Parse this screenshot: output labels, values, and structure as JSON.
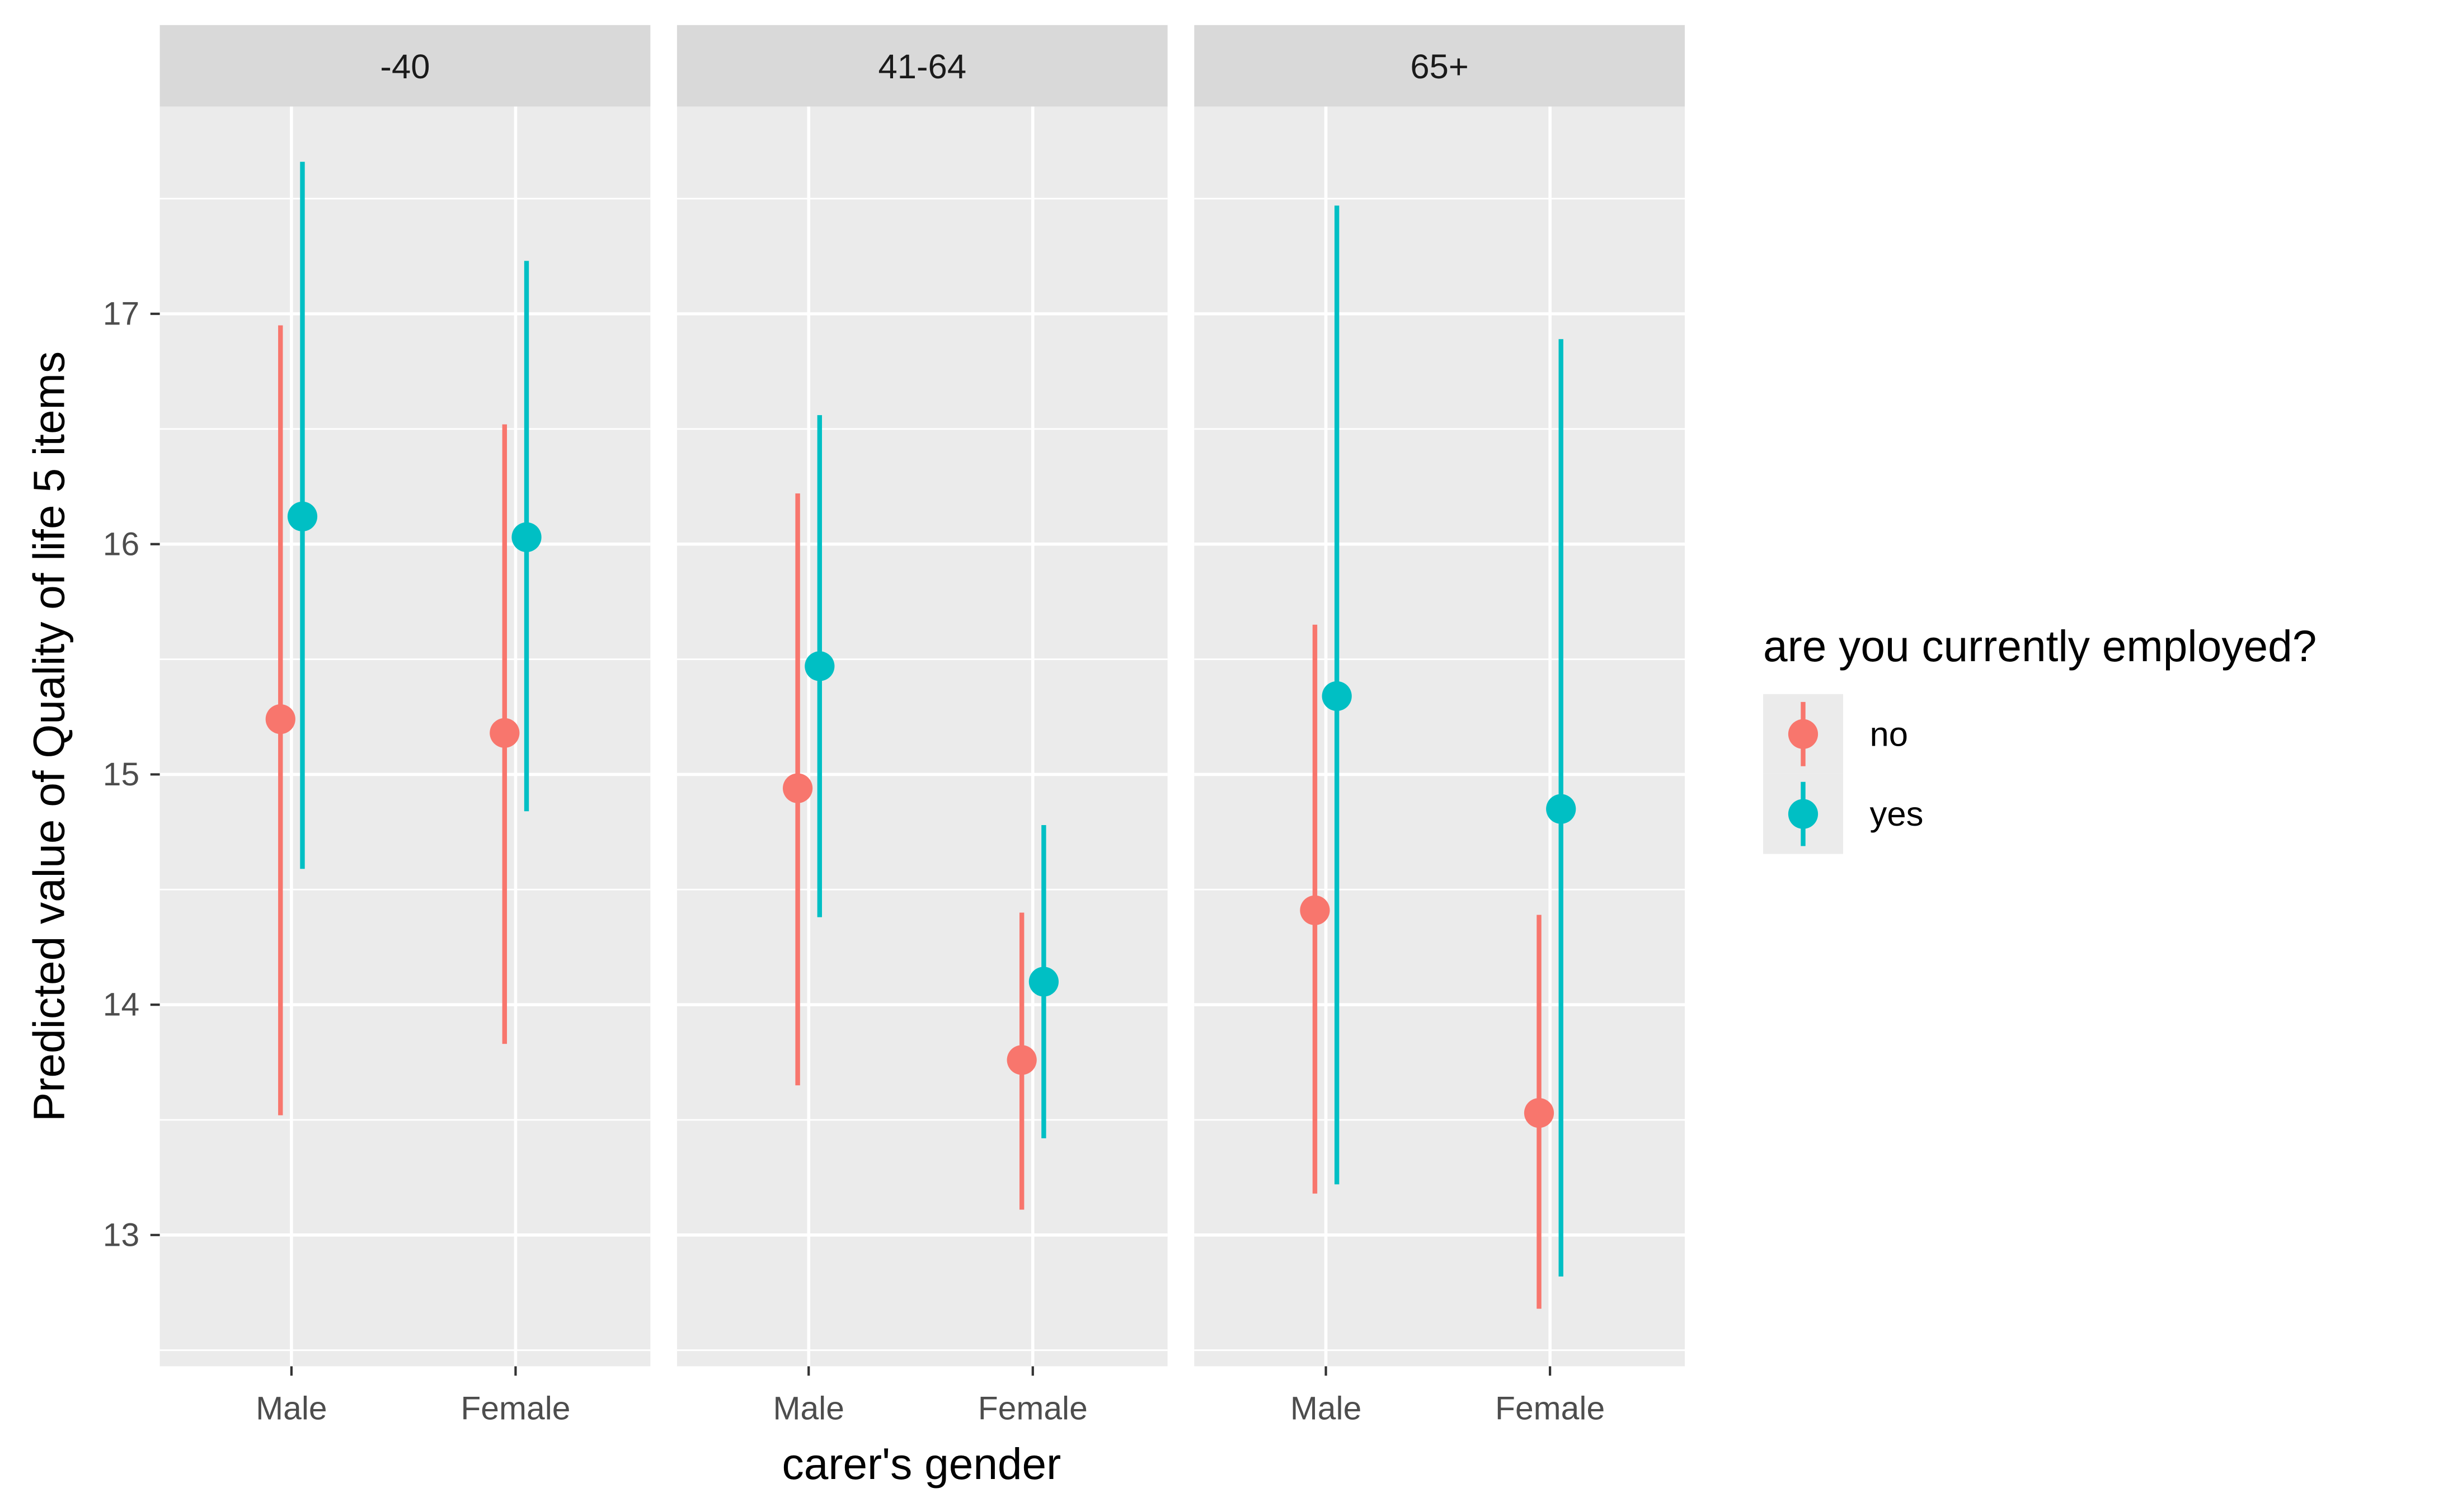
{
  "chart_data": {
    "type": "scatter",
    "subtype": "pointrange-faceted",
    "xlabel": "carer's gender",
    "ylabel": "Predicted value of Quality of life 5 items",
    "categories": [
      "Male",
      "Female"
    ],
    "ylim": [
      12.43,
      17.9
    ],
    "yticks": [
      13,
      14,
      15,
      16,
      17
    ],
    "grid": true,
    "legend": {
      "title": "are you currently employed?",
      "position": "right",
      "entries": [
        {
          "label": "no",
          "color": "#F8766D"
        },
        {
          "label": "yes",
          "color": "#00BFC4"
        }
      ]
    },
    "panels": [
      {
        "strip": "-40",
        "series": [
          {
            "name": "no",
            "color": "#F8766D",
            "points": [
              {
                "x": "Male",
                "y": 15.24,
                "low": 13.52,
                "high": 16.95
              },
              {
                "x": "Female",
                "y": 15.18,
                "low": 13.83,
                "high": 16.52
              }
            ]
          },
          {
            "name": "yes",
            "color": "#00BFC4",
            "points": [
              {
                "x": "Male",
                "y": 16.12,
                "low": 14.59,
                "high": 17.66
              },
              {
                "x": "Female",
                "y": 16.03,
                "low": 14.84,
                "high": 17.23
              }
            ]
          }
        ]
      },
      {
        "strip": "41-64",
        "series": [
          {
            "name": "no",
            "color": "#F8766D",
            "points": [
              {
                "x": "Male",
                "y": 14.94,
                "low": 13.65,
                "high": 16.22
              },
              {
                "x": "Female",
                "y": 13.76,
                "low": 13.11,
                "high": 14.4
              }
            ]
          },
          {
            "name": "yes",
            "color": "#00BFC4",
            "points": [
              {
                "x": "Male",
                "y": 15.47,
                "low": 14.38,
                "high": 16.56
              },
              {
                "x": "Female",
                "y": 14.1,
                "low": 13.42,
                "high": 14.78
              }
            ]
          }
        ]
      },
      {
        "strip": "65+",
        "series": [
          {
            "name": "no",
            "color": "#F8766D",
            "points": [
              {
                "x": "Male",
                "y": 14.41,
                "low": 13.18,
                "high": 15.65
              },
              {
                "x": "Female",
                "y": 13.53,
                "low": 12.68,
                "high": 14.39
              }
            ]
          },
          {
            "name": "yes",
            "color": "#00BFC4",
            "points": [
              {
                "x": "Male",
                "y": 15.34,
                "low": 13.22,
                "high": 17.47
              },
              {
                "x": "Female",
                "y": 14.85,
                "low": 12.82,
                "high": 16.89
              }
            ]
          }
        ]
      }
    ]
  }
}
